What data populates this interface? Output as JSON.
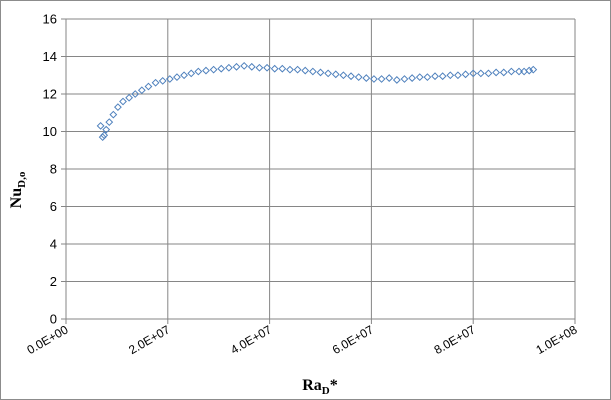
{
  "chart_data": {
    "type": "scatter",
    "title": "",
    "xlabel": {
      "base": "Ra",
      "subscript": "D",
      "suffix": "*"
    },
    "ylabel": {
      "base": "Nu",
      "subscript": "D,o"
    },
    "xlim": [
      0,
      100000000
    ],
    "ylim": [
      0,
      16
    ],
    "x_ticks": [
      0,
      20000000,
      40000000,
      60000000,
      80000000,
      100000000
    ],
    "x_tick_labels": [
      "0.0E+00",
      "2.0E+07",
      "4.0E+07",
      "6.0E+07",
      "8.0E+07",
      "1.0E+08"
    ],
    "y_ticks": [
      0,
      2,
      4,
      6,
      8,
      10,
      12,
      14,
      16
    ],
    "y_tick_labels": [
      "0",
      "2",
      "4",
      "6",
      "8",
      "10",
      "12",
      "14",
      "16"
    ],
    "grid": true,
    "legend": "none",
    "marker": "diamond-open",
    "series_color": "#4f81bd",
    "series": [
      {
        "x": [
          6800000,
          7200000,
          7500000,
          7900000,
          8500000,
          9300000,
          10200000,
          11200000,
          12400000,
          13600000,
          14900000,
          16200000,
          17600000,
          19000000,
          20400000,
          21800000,
          23200000,
          24600000,
          26000000,
          27500000,
          29000000,
          30500000,
          32000000,
          33500000,
          35000000,
          36500000,
          38000000,
          39500000,
          41000000,
          42500000,
          44000000,
          45500000,
          47000000,
          48500000,
          50000000,
          51500000,
          53000000,
          54500000,
          56000000,
          57500000,
          59000000,
          60500000,
          62000000,
          63500000,
          65000000,
          66500000,
          68000000,
          69500000,
          71000000,
          72500000,
          74000000,
          75500000,
          77000000,
          78500000,
          80000000,
          81500000,
          83000000,
          84500000,
          86000000,
          87500000,
          89000000,
          90000000,
          91000000,
          91800000
        ],
        "y": [
          10.3,
          9.7,
          9.8,
          10.1,
          10.5,
          10.9,
          11.3,
          11.6,
          11.8,
          12.0,
          12.2,
          12.4,
          12.6,
          12.7,
          12.8,
          12.9,
          13.0,
          13.1,
          13.2,
          13.25,
          13.3,
          13.35,
          13.4,
          13.45,
          13.5,
          13.45,
          13.4,
          13.4,
          13.35,
          13.35,
          13.3,
          13.3,
          13.25,
          13.2,
          13.15,
          13.1,
          13.05,
          13.0,
          12.95,
          12.9,
          12.85,
          12.8,
          12.8,
          12.85,
          12.75,
          12.8,
          12.85,
          12.9,
          12.9,
          12.95,
          12.95,
          13.0,
          13.0,
          13.05,
          13.1,
          13.1,
          13.1,
          13.15,
          13.15,
          13.2,
          13.2,
          13.2,
          13.25,
          13.3
        ]
      }
    ]
  }
}
